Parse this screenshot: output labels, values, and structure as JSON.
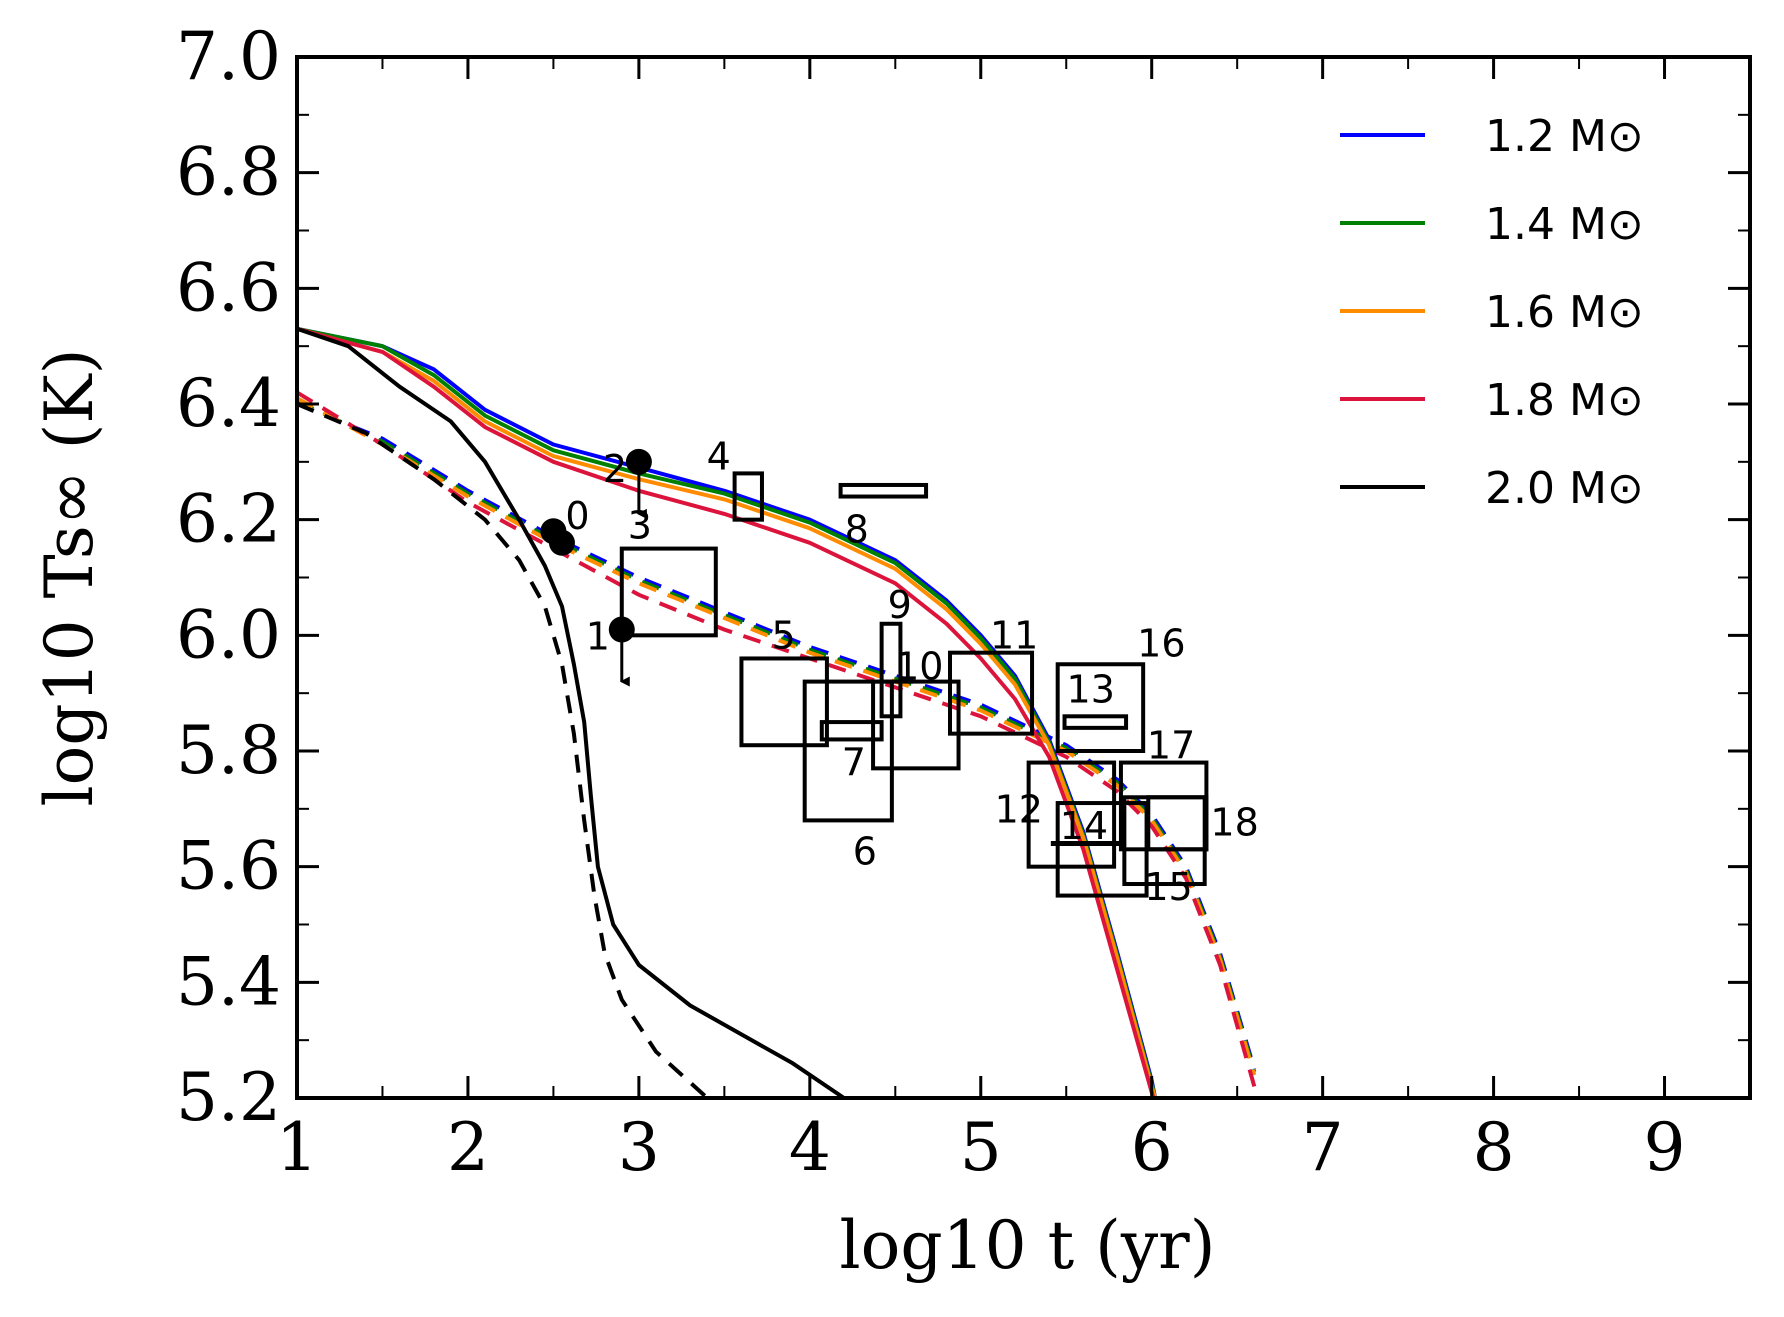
{
  "chart_data": {
    "type": "line",
    "xlabel": "log10 t (yr)",
    "ylabel": "log10 Ts∞ (K)",
    "xlim": [
      1,
      9.5
    ],
    "ylim": [
      5.2,
      7.0
    ],
    "x_ticks": [
      "1",
      "2",
      "3",
      "4",
      "5",
      "6",
      "7",
      "8",
      "9"
    ],
    "y_ticks": [
      "5.2",
      "5.4",
      "5.6",
      "5.8",
      "6.0",
      "6.2",
      "6.4",
      "6.6",
      "6.8",
      "7.0"
    ],
    "grid": false,
    "legend_position": "top-right",
    "series": [
      {
        "name": "1.2 M⊙",
        "color": "#0000ff",
        "style": "solid",
        "x": [
          1.0,
          1.5,
          1.8,
          2.1,
          2.5,
          3.0,
          3.5,
          4.0,
          4.5,
          4.8,
          5.0,
          5.2,
          5.4,
          5.6,
          5.8,
          6.0,
          6.02
        ],
        "y": [
          6.53,
          6.5,
          6.46,
          6.39,
          6.33,
          6.29,
          6.25,
          6.2,
          6.13,
          6.06,
          6.0,
          5.93,
          5.82,
          5.66,
          5.45,
          5.23,
          5.2
        ]
      },
      {
        "name": "1.4 M⊙",
        "color": "#008000",
        "style": "solid",
        "x": [
          1.0,
          1.5,
          1.8,
          2.1,
          2.5,
          3.0,
          3.5,
          4.0,
          4.5,
          4.8,
          5.0,
          5.2,
          5.4,
          5.6,
          5.8,
          6.0,
          6.02
        ],
        "y": [
          6.53,
          6.5,
          6.45,
          6.38,
          6.32,
          6.28,
          6.245,
          6.195,
          6.125,
          6.055,
          5.995,
          5.925,
          5.815,
          5.655,
          5.445,
          5.225,
          5.2
        ]
      },
      {
        "name": "1.6 M⊙",
        "color": "#ff8c00",
        "style": "solid",
        "x": [
          1.0,
          1.5,
          1.8,
          2.1,
          2.5,
          3.0,
          3.5,
          4.0,
          4.5,
          4.8,
          5.0,
          5.2,
          5.4,
          5.6,
          5.8,
          6.0,
          6.02
        ],
        "y": [
          6.53,
          6.49,
          6.44,
          6.37,
          6.31,
          6.27,
          6.235,
          6.185,
          6.115,
          6.045,
          5.985,
          5.915,
          5.81,
          5.65,
          5.44,
          5.22,
          5.2
        ]
      },
      {
        "name": "1.8 M⊙",
        "color": "#dc143c",
        "style": "solid",
        "x": [
          1.0,
          1.5,
          1.8,
          2.1,
          2.5,
          3.0,
          3.5,
          4.0,
          4.5,
          4.8,
          5.0,
          5.2,
          5.4,
          5.6,
          5.8,
          6.0,
          6.02
        ],
        "y": [
          6.53,
          6.49,
          6.43,
          6.36,
          6.3,
          6.25,
          6.21,
          6.16,
          6.09,
          6.02,
          5.96,
          5.89,
          5.79,
          5.63,
          5.42,
          5.21,
          5.19
        ]
      },
      {
        "name": "2.0 M⊙",
        "color": "#000000",
        "style": "solid",
        "x": [
          1.0,
          1.3,
          1.6,
          1.9,
          2.1,
          2.3,
          2.45,
          2.55,
          2.62,
          2.68,
          2.72,
          2.76,
          2.85,
          3.0,
          3.3,
          3.6,
          3.9,
          4.2
        ],
        "y": [
          6.53,
          6.5,
          6.43,
          6.37,
          6.3,
          6.2,
          6.12,
          6.05,
          5.95,
          5.85,
          5.72,
          5.6,
          5.5,
          5.43,
          5.36,
          5.31,
          5.26,
          5.2
        ]
      },
      {
        "name": "",
        "color": "#0000ff",
        "style": "dashed",
        "x": [
          1.0,
          1.5,
          2.0,
          2.5,
          3.0,
          3.5,
          4.0,
          4.5,
          5.0,
          5.5,
          5.8,
          6.0,
          6.2,
          6.4,
          6.6
        ],
        "y": [
          6.4,
          6.34,
          6.25,
          6.17,
          6.1,
          6.04,
          5.98,
          5.93,
          5.88,
          5.81,
          5.75,
          5.69,
          5.6,
          5.45,
          5.25
        ]
      },
      {
        "name": "",
        "color": "#008000",
        "style": "dashed",
        "x": [
          1.0,
          1.5,
          2.0,
          2.5,
          3.0,
          3.5,
          4.0,
          4.5,
          5.0,
          5.5,
          5.8,
          6.0,
          6.2,
          6.4,
          6.6
        ],
        "y": [
          6.405,
          6.335,
          6.245,
          6.165,
          6.095,
          6.035,
          5.975,
          5.925,
          5.875,
          5.805,
          5.745,
          5.685,
          5.595,
          5.445,
          5.245
        ]
      },
      {
        "name": "",
        "color": "#ff8c00",
        "style": "dashed",
        "x": [
          1.0,
          1.5,
          2.0,
          2.5,
          3.0,
          3.5,
          4.0,
          4.5,
          5.0,
          5.5,
          5.8,
          6.0,
          6.2,
          6.4,
          6.6
        ],
        "y": [
          6.41,
          6.33,
          6.24,
          6.16,
          6.09,
          6.03,
          5.97,
          5.92,
          5.87,
          5.8,
          5.74,
          5.68,
          5.59,
          5.44,
          5.24
        ]
      },
      {
        "name": "",
        "color": "#dc143c",
        "style": "dashed",
        "x": [
          1.0,
          1.5,
          2.0,
          2.5,
          3.0,
          3.5,
          4.0,
          4.5,
          5.0,
          5.5,
          5.8,
          6.0,
          6.2,
          6.4,
          6.6
        ],
        "y": [
          6.42,
          6.33,
          6.23,
          6.15,
          6.07,
          6.01,
          5.96,
          5.91,
          5.86,
          5.79,
          5.73,
          5.67,
          5.58,
          5.43,
          5.22
        ]
      },
      {
        "name": "",
        "color": "#000000",
        "style": "dashed",
        "x": [
          1.0,
          1.4,
          1.8,
          2.1,
          2.3,
          2.45,
          2.55,
          2.62,
          2.68,
          2.74,
          2.8,
          2.9,
          3.1,
          3.4
        ],
        "y": [
          6.4,
          6.35,
          6.27,
          6.2,
          6.13,
          6.05,
          5.95,
          5.83,
          5.68,
          5.55,
          5.45,
          5.37,
          5.28,
          5.2
        ]
      }
    ],
    "points": [
      {
        "label": "0",
        "x": 2.5,
        "y": 6.18,
        "upper_limit": false
      },
      {
        "label": "",
        "x": 2.55,
        "y": 6.16,
        "upper_limit": false
      },
      {
        "label": "1",
        "x": 2.9,
        "y": 6.01,
        "upper_limit": true
      },
      {
        "label": "2",
        "x": 3.0,
        "y": 6.3,
        "upper_limit": true
      }
    ],
    "boxes": [
      {
        "label": "3",
        "x": [
          2.9,
          3.45
        ],
        "y": [
          6.0,
          6.15
        ]
      },
      {
        "label": "4",
        "x": [
          3.56,
          3.72
        ],
        "y": [
          6.2,
          6.28
        ]
      },
      {
        "label": "5",
        "x": [
          3.6,
          4.1
        ],
        "y": [
          5.81,
          5.96
        ]
      },
      {
        "label": "6",
        "x": [
          3.97,
          4.48
        ],
        "y": [
          5.68,
          5.92
        ]
      },
      {
        "label": "7",
        "x": [
          4.07,
          4.42
        ],
        "y": [
          5.82,
          5.85
        ]
      },
      {
        "label": "8",
        "x": [
          4.18,
          4.68
        ],
        "y": [
          6.24,
          6.26
        ]
      },
      {
        "label": "9",
        "x": [
          4.42,
          4.53
        ],
        "y": [
          5.86,
          6.02
        ]
      },
      {
        "label": "10",
        "x": [
          4.37,
          4.87
        ],
        "y": [
          5.77,
          5.92
        ]
      },
      {
        "label": "11",
        "x": [
          4.82,
          5.3
        ],
        "y": [
          5.83,
          5.97
        ]
      },
      {
        "label": "12",
        "x": [
          5.28,
          5.78
        ],
        "y": [
          5.6,
          5.78
        ]
      },
      {
        "label": "13",
        "x": [
          5.49,
          5.85
        ],
        "y": [
          5.84,
          5.86
        ]
      },
      {
        "label": "14",
        "x": [
          5.45,
          5.97
        ],
        "y": [
          5.55,
          5.71
        ]
      },
      {
        "label": "15",
        "x": [
          5.84,
          6.31
        ],
        "y": [
          5.57,
          5.72
        ]
      },
      {
        "label": "16",
        "x": [
          5.45,
          5.95
        ],
        "y": [
          5.8,
          5.95
        ]
      },
      {
        "label": "17",
        "x": [
          5.82,
          6.32
        ],
        "y": [
          5.63,
          5.78
        ]
      },
      {
        "label": "18",
        "x": [
          5.98,
          6.32
        ],
        "y": [
          5.63,
          5.72
        ]
      }
    ],
    "extra_segments": [
      {
        "x": [
          5.41,
          5.85
        ],
        "y": [
          5.64,
          5.64
        ]
      }
    ]
  }
}
